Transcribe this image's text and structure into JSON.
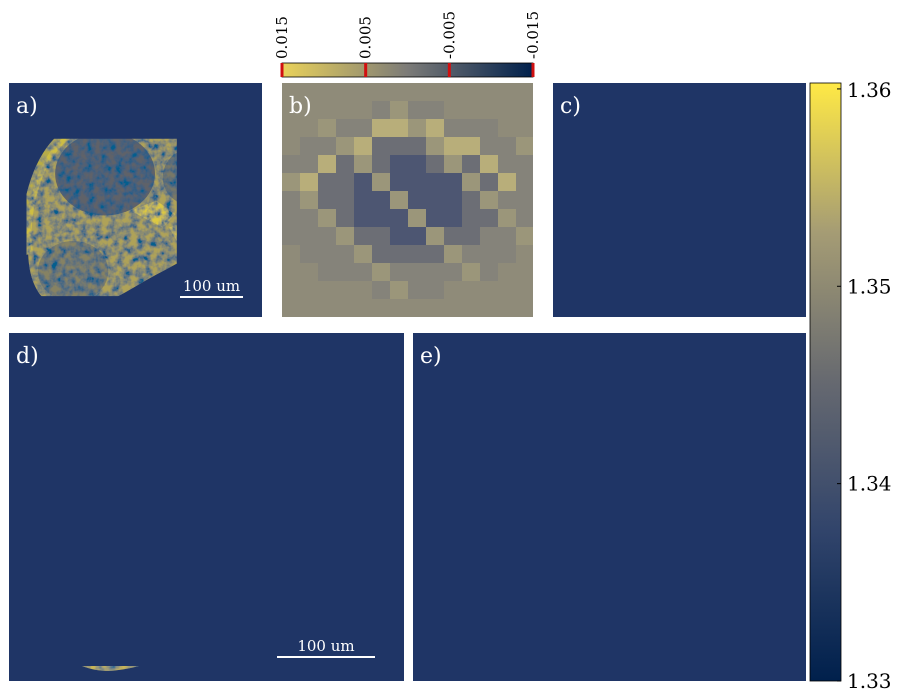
{
  "panels": [
    {
      "label": "a)",
      "scale_bar": "100 um"
    },
    {
      "label": "b)"
    },
    {
      "label": "c)"
    },
    {
      "label": "d)",
      "scale_bar": "100 um"
    },
    {
      "label": "e)"
    }
  ],
  "difference_colorbar": {
    "lim": [
      0.015,
      -0.015
    ],
    "ticks": [
      0.015,
      0.005,
      -0.005,
      -0.015
    ]
  },
  "index_colorbar": {
    "lim": [
      1.33,
      1.3603
    ],
    "ticks": [
      1.36,
      1.35,
      1.34,
      1.33
    ]
  }
}
